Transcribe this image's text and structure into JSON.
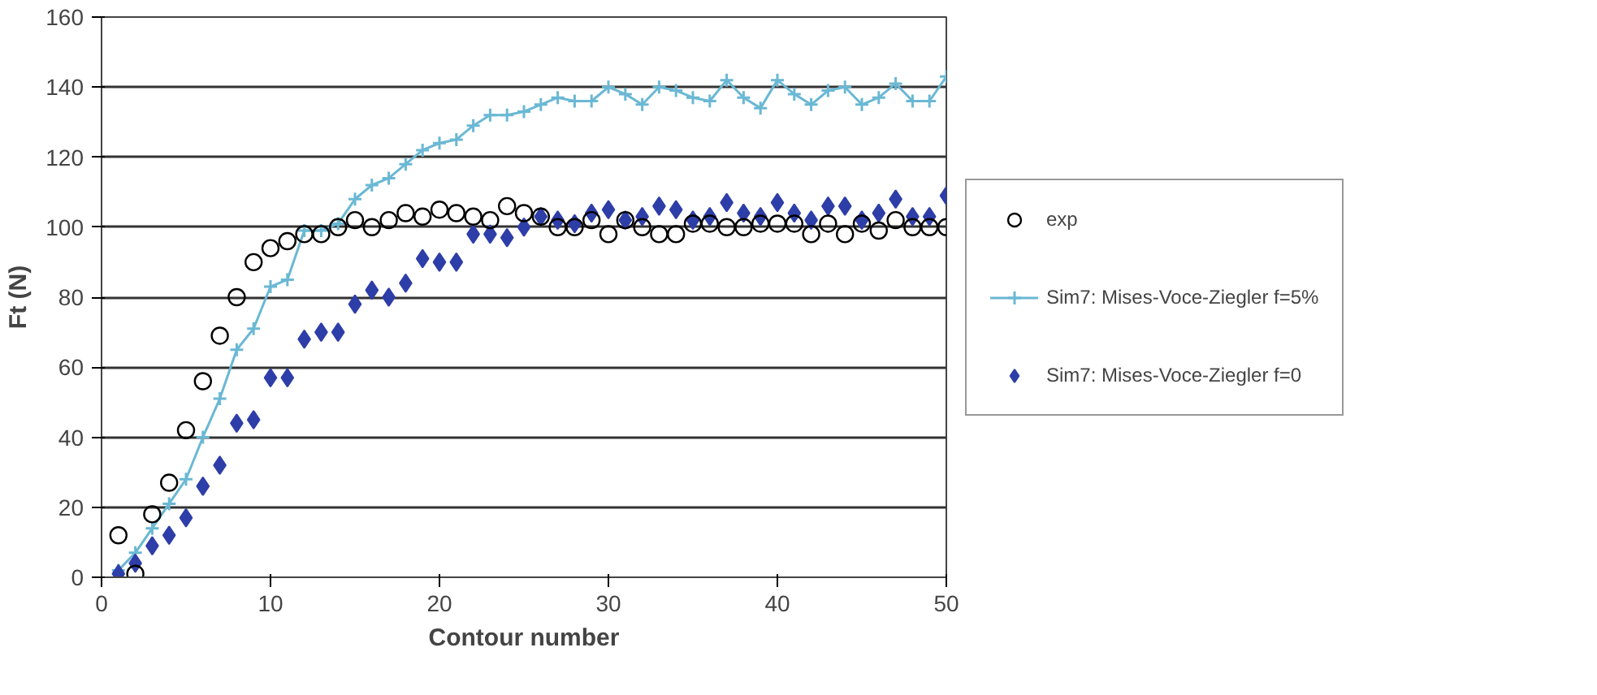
{
  "chart_data": {
    "type": "scatter",
    "xlabel": "Contour number",
    "ylabel": "Ft (N)",
    "x": [
      1,
      2,
      3,
      4,
      5,
      6,
      7,
      8,
      9,
      10,
      11,
      12,
      13,
      14,
      15,
      16,
      17,
      18,
      19,
      20,
      21,
      22,
      23,
      24,
      25,
      26,
      27,
      28,
      29,
      30,
      31,
      32,
      33,
      34,
      35,
      36,
      37,
      38,
      39,
      40,
      41,
      42,
      43,
      44,
      45,
      46,
      47,
      48,
      49,
      50
    ],
    "xlim": [
      0,
      50
    ],
    "xticks": [
      0,
      10,
      20,
      30,
      40,
      50
    ],
    "ylim": [
      0,
      160
    ],
    "yticks": [
      0,
      20,
      40,
      60,
      80,
      100,
      120,
      140,
      160
    ],
    "grid": "y",
    "legend": "right",
    "series": [
      {
        "name": "exp",
        "marker": "circle",
        "color": "#000000",
        "values": [
          12,
          1,
          18,
          27,
          42,
          56,
          69,
          80,
          90,
          94,
          96,
          98,
          98,
          100,
          102,
          100,
          102,
          104,
          103,
          105,
          104,
          103,
          102,
          106,
          104,
          103,
          100,
          100,
          102,
          98,
          102,
          100,
          98,
          98,
          101,
          101,
          100,
          100,
          101,
          101,
          101,
          98,
          101,
          98,
          101,
          99,
          102,
          100,
          100,
          100
        ]
      },
      {
        "name": "Sim7: Mises-Voce-Ziegler f=5%",
        "type": "line",
        "marker": "cross",
        "color": "#6ab8d4",
        "values": [
          2,
          7,
          14,
          21,
          28,
          40,
          51,
          65,
          71,
          83,
          85,
          99,
          99,
          101,
          108,
          112,
          114,
          118,
          122,
          124,
          125,
          129,
          132,
          132,
          133,
          135,
          137,
          136,
          136,
          140,
          138,
          135,
          140,
          139,
          137,
          136,
          142,
          137,
          134,
          142,
          138,
          135,
          139,
          140,
          135,
          137,
          141,
          136,
          136,
          143
        ]
      },
      {
        "name": "Sim7: Mises-Voce-Ziegler f=0",
        "marker": "diamond",
        "color": "#2e3ea8",
        "values": [
          1,
          4,
          9,
          12,
          17,
          26,
          32,
          44,
          45,
          57,
          57,
          68,
          70,
          70,
          78,
          82,
          80,
          84,
          91,
          90,
          90,
          98,
          98,
          97,
          100,
          103,
          102,
          101,
          104,
          105,
          102,
          103,
          106,
          105,
          102,
          103,
          107,
          104,
          103,
          107,
          104,
          102,
          106,
          106,
          102,
          104,
          108,
          103,
          103,
          109
        ]
      }
    ]
  }
}
